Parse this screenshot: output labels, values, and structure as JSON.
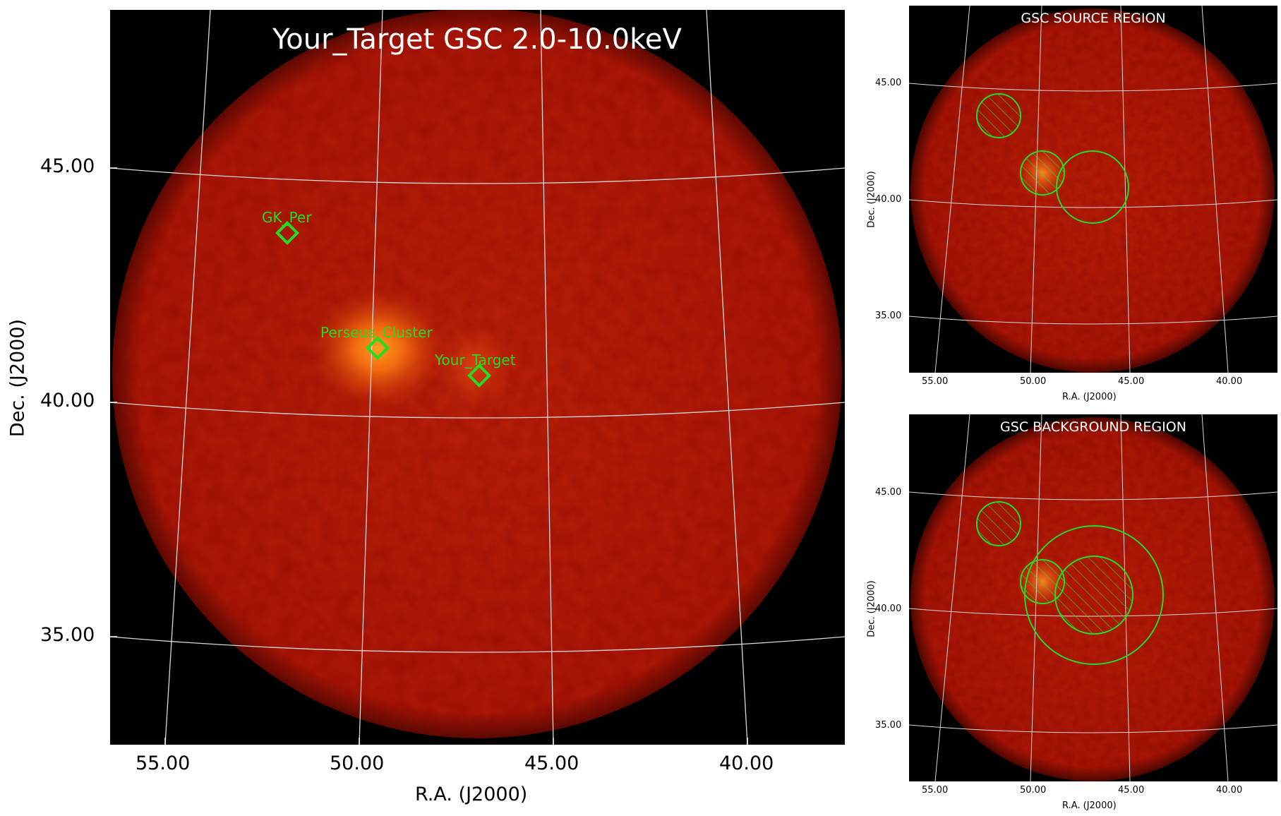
{
  "main": {
    "title": "Your_Target GSC 2.0-10.0keV",
    "xlabel": "R.A. (J2000)",
    "ylabel": "Dec. (J2000)",
    "xticks": [
      "55.00",
      "50.00",
      "45.00",
      "40.00"
    ],
    "yticks": [
      "45.00",
      "40.00",
      "35.00"
    ],
    "sources": [
      {
        "name": "GK_Per"
      },
      {
        "name": "Perseus_Cluster"
      },
      {
        "name": "Your_Target"
      }
    ]
  },
  "source_region": {
    "title": "GSC SOURCE REGION",
    "xlabel": "R.A. (J2000)",
    "ylabel": "Dec. (J2000)",
    "xticks": [
      "55.00",
      "50.00",
      "45.00",
      "40.00"
    ],
    "yticks": [
      "45.00",
      "40.00",
      "35.00"
    ]
  },
  "background_region": {
    "title": "GSC BACKGROUND REGION",
    "xlabel": "R.A. (J2000)",
    "ylabel": "Dec. (J2000)",
    "xticks": [
      "55.00",
      "50.00",
      "45.00",
      "40.00"
    ],
    "yticks": [
      "45.00",
      "40.00",
      "35.00"
    ]
  },
  "colors": {
    "marker": "#22dd22",
    "grid": "#d8d8d8",
    "field": "#b81c08",
    "title_text": "#ffffff"
  }
}
